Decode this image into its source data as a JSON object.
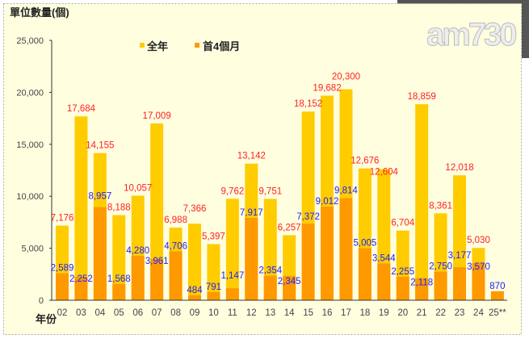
{
  "logo_text": "am730",
  "chart_data": {
    "type": "bar",
    "ylabel": "單位數量(個)",
    "xlabel": "年份",
    "ylim": [
      0,
      25000
    ],
    "yticks": [
      "0",
      "5,000",
      "10,000",
      "15,000",
      "20,000",
      "25,000"
    ],
    "yticks_values": [
      0,
      5000,
      10000,
      15000,
      20000,
      25000
    ],
    "legend_position": "top-center",
    "categories": [
      "02",
      "03",
      "04",
      "05",
      "06",
      "07",
      "08",
      "09",
      "10",
      "11",
      "12",
      "13",
      "14",
      "15",
      "16",
      "17",
      "18",
      "19",
      "20",
      "21",
      "22",
      "23",
      "24",
      "25**"
    ],
    "series": [
      {
        "name": "全年",
        "color": "#FFCC00",
        "label_color": "#FF2020",
        "values": [
          7176,
          17684,
          14155,
          8188,
          10057,
          17009,
          6988,
          7366,
          5397,
          9762,
          13142,
          9751,
          6257,
          18152,
          19682,
          20300,
          12676,
          12604,
          6704,
          18859,
          8361,
          12018,
          5030,
          null
        ],
        "labels": [
          "7,176",
          "17,684",
          "14,155",
          "8,188",
          "10,057",
          "17,009",
          "6,988",
          "7,366",
          "5,397",
          "9,762",
          "13,142",
          "9,751",
          "6,257",
          "18,152",
          "19,682",
          "20,300",
          "12,676",
          "12,604",
          "6,704",
          "18,859",
          "8,361",
          "12,018",
          "5,030",
          ""
        ]
      },
      {
        "name": "首4個月",
        "color": "#FF9900",
        "label_color": "#2020FF",
        "values": [
          2589,
          2252,
          8957,
          1568,
          4280,
          3961,
          4706,
          484,
          791,
          1147,
          7917,
          2354,
          2345,
          7372,
          9012,
          9814,
          5005,
          3544,
          2255,
          2118,
          2750,
          3177,
          3570,
          870
        ],
        "labels": [
          "2,589",
          "2,252",
          "8,957",
          "1,568",
          "4,280",
          "3,961",
          "4,706",
          "484",
          "791",
          "1,147",
          "7,917",
          "2,354",
          "2,345",
          "7,372",
          "9,012",
          "9,814",
          "5,005",
          "3,544",
          "2,255",
          "2,118",
          "2,750",
          "3,177",
          "3,570",
          "870"
        ]
      }
    ]
  }
}
